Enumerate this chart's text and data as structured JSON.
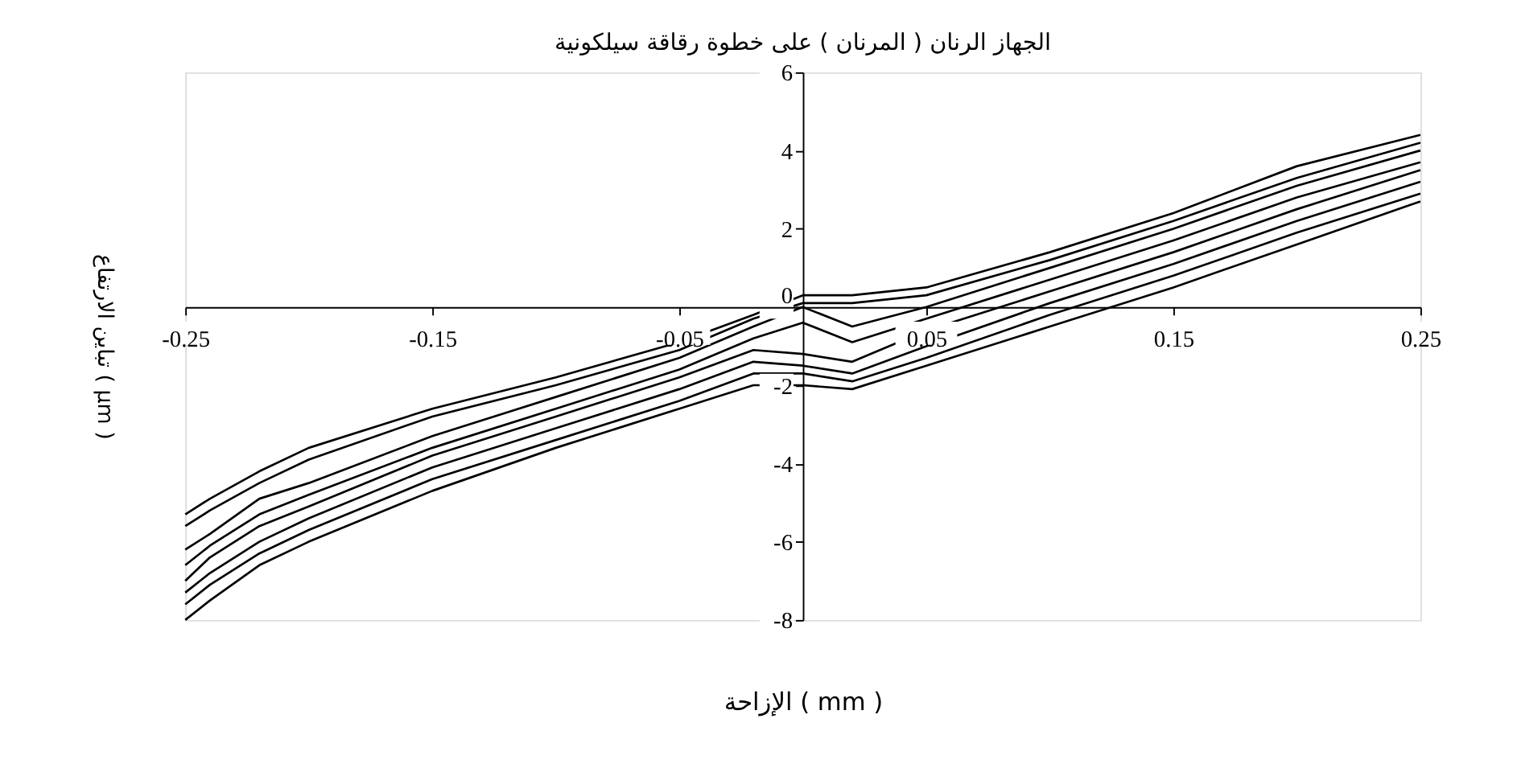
{
  "chart_data": {
    "type": "line",
    "title": "الجهاز الرنان ( المرنان ) على خطوة رقاقة سيلكونية",
    "xlabel": "الإزاحة ( mm )",
    "ylabel": "تباين الارتفاع ( µm )",
    "x": [
      -0.25,
      -0.24,
      -0.22,
      -0.2,
      -0.15,
      -0.1,
      -0.05,
      -0.02,
      0,
      0.02,
      0.05,
      0.1,
      0.15,
      0.2,
      0.25
    ],
    "series": [
      {
        "color": "#000000",
        "values": [
          -5.3,
          -4.9,
          -4.2,
          -3.6,
          -2.6,
          -1.8,
          -0.9,
          -0.2,
          0.3,
          0.3,
          0.5,
          1.4,
          2.4,
          3.6,
          4.4
        ]
      },
      {
        "color": "#000000",
        "values": [
          -5.6,
          -5.2,
          -4.5,
          -3.9,
          -2.8,
          -2.0,
          -1.1,
          -0.3,
          0.1,
          0.1,
          0.3,
          1.2,
          2.2,
          3.3,
          4.2
        ]
      },
      {
        "color": "#000000",
        "values": [
          -6.2,
          -5.8,
          -4.9,
          -4.5,
          -3.3,
          -2.3,
          -1.3,
          -0.5,
          0.0,
          -0.5,
          0.0,
          1.0,
          2.0,
          3.1,
          4.0
        ]
      },
      {
        "color": "#000000",
        "values": [
          -6.6,
          -6.1,
          -5.3,
          -4.8,
          -3.6,
          -2.6,
          -1.6,
          -0.8,
          -0.4,
          -0.9,
          -0.3,
          0.7,
          1.7,
          2.8,
          3.7
        ]
      },
      {
        "color": "#000000",
        "values": [
          -7.0,
          -6.4,
          -5.6,
          -5.1,
          -3.8,
          -2.8,
          -1.8,
          -1.1,
          -1.2,
          -1.4,
          -0.6,
          0.4,
          1.4,
          2.5,
          3.5
        ]
      },
      {
        "color": "#000000",
        "values": [
          -7.3,
          -6.8,
          -6.0,
          -5.4,
          -4.1,
          -3.1,
          -2.1,
          -1.4,
          -1.5,
          -1.7,
          -1.0,
          0.1,
          1.1,
          2.2,
          3.2
        ]
      },
      {
        "color": "#000000",
        "values": [
          -7.6,
          -7.1,
          -6.3,
          -5.7,
          -4.4,
          -3.4,
          -2.4,
          -1.7,
          -1.7,
          -1.9,
          -1.3,
          -0.2,
          0.8,
          1.9,
          2.9
        ]
      },
      {
        "color": "#000000",
        "values": [
          -8.0,
          -7.5,
          -6.6,
          -6.0,
          -4.7,
          -3.6,
          -2.6,
          -2.0,
          -2.0,
          -2.1,
          -1.5,
          -0.5,
          0.5,
          1.6,
          2.7
        ]
      }
    ],
    "xlim": [
      -0.25,
      0.25
    ],
    "xticks": [
      -0.25,
      -0.15,
      -0.05,
      0.05,
      0.15,
      0.25
    ],
    "ylim": [
      -8,
      6
    ],
    "yticks": [
      -8,
      -6,
      -4,
      -2,
      0,
      2,
      4,
      6
    ],
    "grid": false,
    "legend": false,
    "marker": "none",
    "line_style": "solid"
  }
}
